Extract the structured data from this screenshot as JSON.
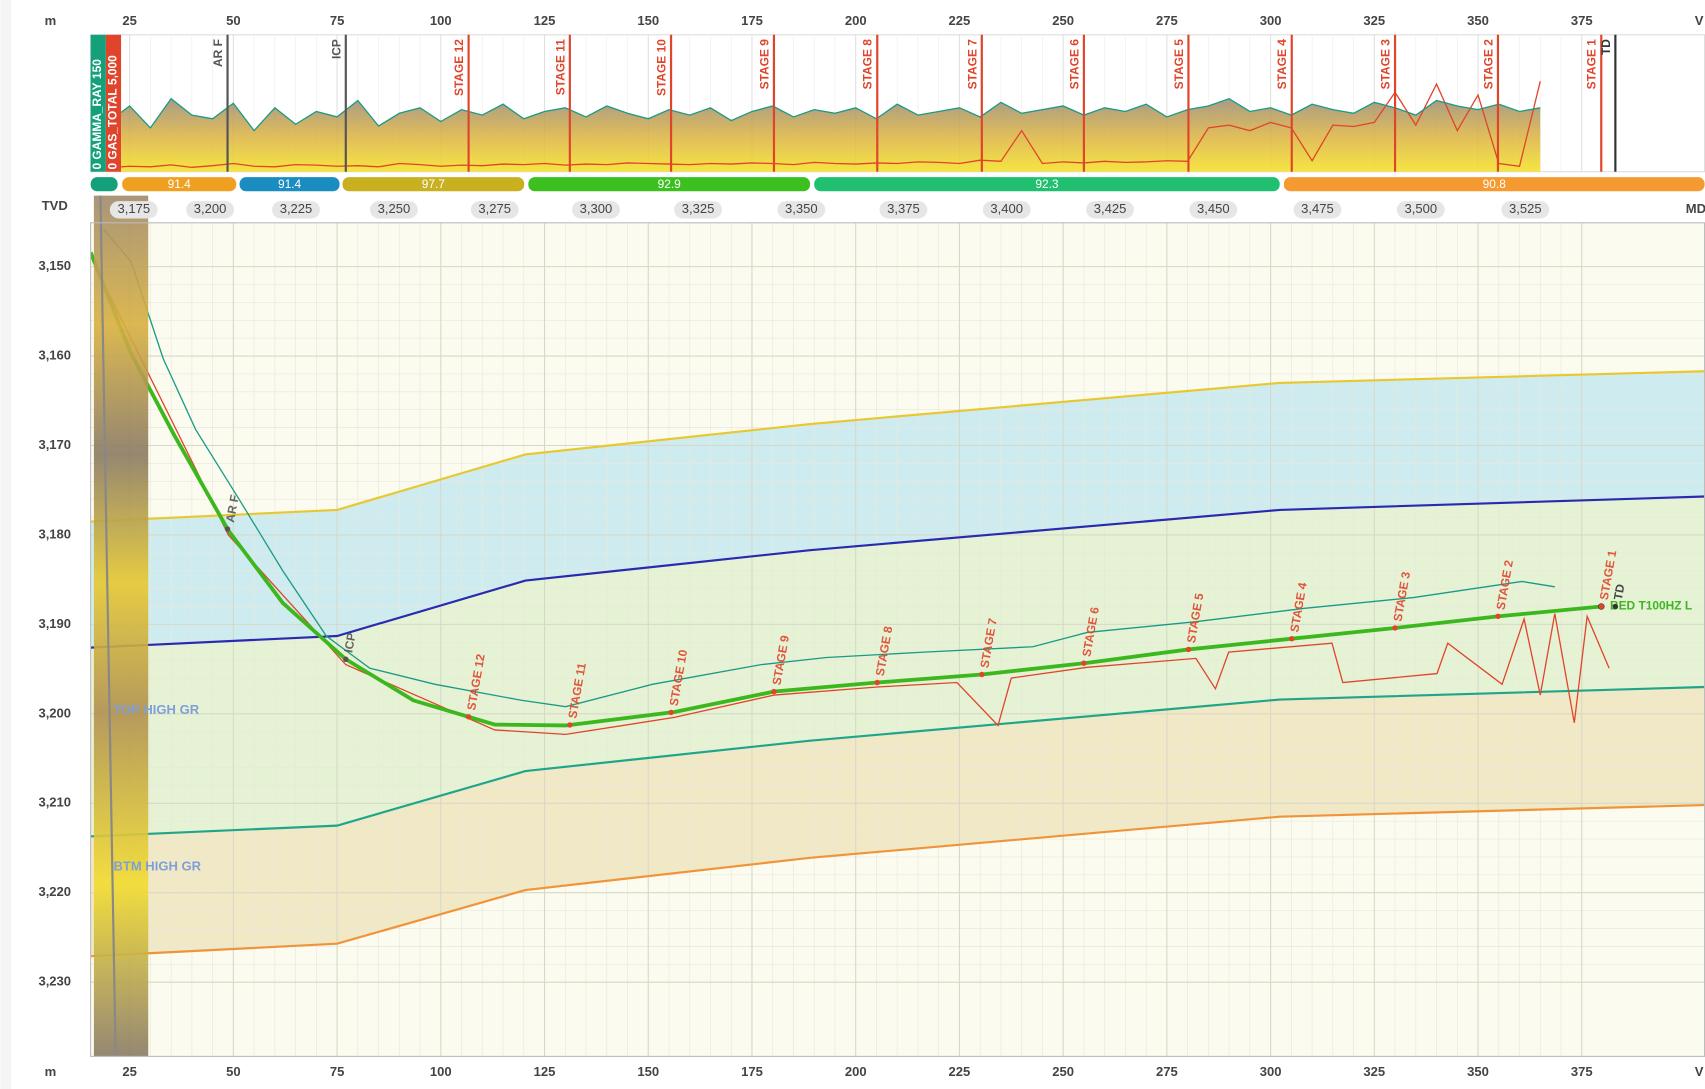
{
  "chart_data": {
    "type": "line",
    "x_label": "m",
    "x_end_label": "V",
    "y_label": "TVD",
    "md_label": "MD",
    "grid": true,
    "xlim": [
      15.6,
      404.6
    ],
    "xticks": [
      25,
      50,
      75,
      100,
      125,
      150,
      175,
      200,
      225,
      250,
      275,
      300,
      325,
      350,
      375
    ],
    "ylim": [
      3238.3,
      3145.1
    ],
    "yticks": [
      {
        "value": 3150,
        "label": "3,150"
      },
      {
        "value": 3160,
        "label": "3,160"
      },
      {
        "value": 3170,
        "label": "3,170"
      },
      {
        "value": 3180,
        "label": "3,180"
      },
      {
        "value": 3190,
        "label": "3,190"
      },
      {
        "value": 3200,
        "label": "3,200"
      },
      {
        "value": 3210,
        "label": "3,210"
      },
      {
        "value": 3220,
        "label": "3,220"
      },
      {
        "value": 3230,
        "label": "3,230"
      }
    ],
    "md_ticks": {
      "x": [
        26.0,
        44.4,
        65.1,
        88.7,
        113.0,
        137.4,
        162.0,
        186.9,
        211.5,
        236.4,
        261.3,
        286.2,
        311.3,
        336.2,
        361.4
      ],
      "labels": [
        "3,175",
        "3,200",
        "3,225",
        "3,250",
        "3,275",
        "3,300",
        "3,325",
        "3,350",
        "3,375",
        "3,400",
        "3,425",
        "3,450",
        "3,475",
        "3,500",
        "3,525"
      ]
    },
    "log_track": {
      "gamma": {
        "name": "GAMMA_RAY",
        "range": [
          0,
          150
        ],
        "color": "#1a9a86",
        "x": [
          20,
          25,
          30,
          35,
          40,
          45,
          50,
          55,
          60,
          65,
          70,
          75,
          80,
          85,
          90,
          95,
          100,
          105,
          110,
          115,
          120,
          125,
          130,
          135,
          140,
          145,
          150,
          155,
          160,
          165,
          170,
          175,
          180,
          185,
          190,
          195,
          200,
          205,
          210,
          215,
          220,
          225,
          230,
          235,
          240,
          245,
          250,
          255,
          260,
          265,
          270,
          275,
          280,
          285,
          290,
          295,
          300,
          305,
          310,
          315,
          320,
          325,
          330,
          335,
          340,
          345,
          350,
          355,
          360,
          365
        ],
        "values": [
          55,
          72,
          48,
          80,
          62,
          58,
          75,
          45,
          70,
          52,
          66,
          60,
          78,
          50,
          64,
          70,
          55,
          68,
          62,
          74,
          58,
          66,
          70,
          60,
          72,
          64,
          58,
          68,
          62,
          70,
          56,
          66,
          72,
          60,
          68,
          64,
          70,
          58,
          74,
          62,
          66,
          70,
          60,
          76,
          64,
          68,
          72,
          62,
          70,
          66,
          74,
          60,
          68,
          72,
          80,
          66,
          70,
          62,
          74,
          68,
          64,
          76,
          70,
          62,
          78,
          72,
          68,
          74,
          66,
          70
        ]
      },
      "gas": {
        "name": "GAS_TOTAL",
        "range": [
          0,
          {
            "value": 5000,
            "label": "5,000"
          }
        ],
        "color": "#e0452c",
        "x": [
          20,
          25,
          30,
          35,
          40,
          45,
          50,
          55,
          60,
          65,
          70,
          75,
          80,
          85,
          90,
          95,
          100,
          105,
          110,
          115,
          120,
          125,
          130,
          135,
          140,
          145,
          150,
          155,
          160,
          165,
          170,
          175,
          180,
          185,
          190,
          195,
          200,
          205,
          210,
          215,
          220,
          225,
          230,
          235,
          240,
          245,
          250,
          255,
          260,
          265,
          270,
          275,
          280,
          285,
          290,
          295,
          300,
          305,
          310,
          315,
          320,
          325,
          330,
          335,
          340,
          345,
          350,
          355,
          360,
          365
        ],
        "values": [
          150,
          200,
          180,
          250,
          160,
          220,
          300,
          200,
          180,
          260,
          240,
          200,
          220,
          180,
          300,
          260,
          200,
          240,
          220,
          280,
          260,
          300,
          240,
          280,
          260,
          320,
          300,
          280,
          260,
          300,
          280,
          320,
          300,
          260,
          340,
          300,
          280,
          320,
          300,
          360,
          340,
          300,
          420,
          380,
          1500,
          300,
          360,
          320,
          380,
          340,
          360,
          400,
          380,
          1600,
          1700,
          1500,
          1800,
          1600,
          400,
          1700,
          1650,
          1800,
          2900,
          1700,
          3200,
          1500,
          2800,
          300,
          200,
          3300
        ]
      }
    },
    "segments": [
      {
        "from": 15.6,
        "to": 22.1,
        "color": "#14a07a"
      },
      {
        "from": 23.2,
        "to": 50.7,
        "value": 91.4,
        "color": "#f0a020"
      },
      {
        "from": 51.5,
        "to": 75.6,
        "value": 91.4,
        "color": "#1a8cc0"
      },
      {
        "from": 76.3,
        "to": 120.1,
        "value": 97.7,
        "color": "#c8b020"
      },
      {
        "from": 121.1,
        "to": 189.0,
        "value": 92.9,
        "color": "#3cc020"
      },
      {
        "from": 190.0,
        "to": 302.2,
        "value": 92.3,
        "color": "#20c070"
      },
      {
        "from": 303.2,
        "to": 404.6,
        "value": 90.8,
        "color": "#f59a30"
      }
    ],
    "markers": [
      {
        "label": "AR F",
        "x": 48.6,
        "color": "#555555"
      },
      {
        "label": "ICP",
        "x": 77.1,
        "color": "#555555"
      },
      {
        "label": "STAGE 12",
        "x": 106.7,
        "color": "#e0452c"
      },
      {
        "label": "STAGE 11",
        "x": 131.1,
        "color": "#e0452c"
      },
      {
        "label": "STAGE 10",
        "x": 155.5,
        "color": "#e0452c"
      },
      {
        "label": "STAGE 9",
        "x": 180.3,
        "color": "#e0452c"
      },
      {
        "label": "STAGE 8",
        "x": 205.2,
        "color": "#e0452c"
      },
      {
        "label": "STAGE 7",
        "x": 230.4,
        "color": "#e0452c"
      },
      {
        "label": "STAGE 6",
        "x": 255.0,
        "color": "#e0452c"
      },
      {
        "label": "STAGE 5",
        "x": 280.2,
        "color": "#e0452c"
      },
      {
        "label": "STAGE 4",
        "x": 305.1,
        "color": "#e0452c"
      },
      {
        "label": "STAGE 3",
        "x": 330.0,
        "color": "#e0452c"
      },
      {
        "label": "STAGE 2",
        "x": 354.8,
        "color": "#e0452c"
      },
      {
        "label": "STAGE 1",
        "x": 379.7,
        "color": "#e0452c"
      },
      {
        "label": "TD",
        "x": 383.1,
        "color": "#333333"
      }
    ],
    "horizons": [
      {
        "color": "#e8c832",
        "fill": "#c6e9ee",
        "x": [
          15.6,
          75.0,
          120.4,
          189.0,
          302.2,
          404.6
        ],
        "values": [
          3178.5,
          3177.2,
          3171.0,
          3167.6,
          3163.0,
          3161.7
        ]
      },
      {
        "color": "#2a2ab0",
        "fill": "#e2f0cf",
        "x": [
          15.6,
          75.0,
          120.4,
          189.0,
          302.2,
          404.6
        ],
        "values": [
          3192.6,
          3191.3,
          3185.1,
          3181.7,
          3177.2,
          3175.7
        ]
      },
      {
        "color": "#1fa58a",
        "fill": "#efe4bd",
        "x": [
          15.6,
          75.0,
          120.4,
          189.0,
          302.2,
          404.6
        ],
        "values": [
          3213.7,
          3212.5,
          3206.4,
          3203.0,
          3198.4,
          3197.0
        ]
      },
      {
        "color": "#f0943a",
        "x": [
          15.6,
          75.0,
          120.4,
          189.0,
          302.2,
          404.6
        ],
        "values": [
          3227.1,
          3225.7,
          3219.7,
          3216.1,
          3211.5,
          3210.2
        ]
      }
    ],
    "annotations": [
      "TOP HIGH GR",
      "BTM HIGH GR"
    ],
    "well_path": {
      "label": "BED T100HZ L",
      "color": "#3cb81e",
      "x": [
        15.6,
        25.3,
        35.7,
        48.8,
        61.9,
        77.1,
        93.4,
        113.0,
        130.1,
        156.3,
        180.4,
        205.2,
        230.4,
        255.8,
        280.2,
        305.1,
        330.0,
        354.8,
        379.7
      ],
      "values": [
        3148.4,
        3159.7,
        3168.8,
        3179.5,
        3187.6,
        3193.9,
        3198.5,
        3201.2,
        3201.3,
        3199.8,
        3197.5,
        3196.5,
        3195.6,
        3194.3,
        3192.8,
        3191.6,
        3190.4,
        3189.1,
        3188.0
      ]
    },
    "gr_curve": {
      "color": "#1a9a86",
      "x": [
        18.7,
        25.3,
        33.1,
        40.9,
        51.5,
        61.9,
        72.4,
        82.9,
        98.6,
        119.6,
        130.1,
        151.0,
        177.2,
        193.0,
        216.5,
        242.7,
        255.8,
        282.0,
        308.2,
        334.4,
        360.6,
        368.5
      ],
      "values": [
        3145.8,
        3149.4,
        3160.3,
        3168.2,
        3176.1,
        3184.0,
        3191.3,
        3194.9,
        3196.7,
        3198.5,
        3199.2,
        3196.7,
        3194.5,
        3193.7,
        3193.1,
        3192.5,
        3190.9,
        3189.7,
        3188.2,
        3187.0,
        3185.2,
        3185.8
      ]
    },
    "gas_curve": {
      "color": "#e0452c",
      "x": [
        16.1,
        48.8,
        77.1,
        113.0,
        130.1,
        156.3,
        180.4,
        205.2,
        224.4,
        234.3,
        237.5,
        255.8,
        282.0,
        286.7,
        289.9,
        314.8,
        317.4,
        340.1,
        342.7,
        355.8,
        361.1,
        365.0,
        368.5,
        373.2,
        376.3,
        381.6
      ],
      "values": [
        3149.4,
        3180.0,
        3194.5,
        3201.8,
        3202.3,
        3200.4,
        3197.9,
        3197.0,
        3196.5,
        3201.3,
        3196.0,
        3194.8,
        3193.8,
        3197.2,
        3193.1,
        3192.1,
        3196.5,
        3195.5,
        3192.1,
        3196.7,
        3189.4,
        3197.9,
        3188.8,
        3201.0,
        3189.1,
        3194.9
      ]
    }
  }
}
